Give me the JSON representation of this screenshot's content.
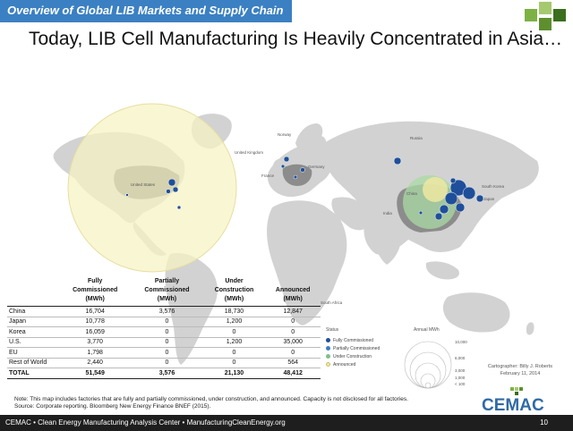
{
  "header": {
    "text": "Overview of Global LIB Markets and Supply Chain"
  },
  "title": "Today, LIB Cell Manufacturing Is Heavily Concentrated in Asia…",
  "map_labels": [
    {
      "key": "norway",
      "text": "Norway"
    },
    {
      "key": "uk",
      "text": "United Kingdom"
    },
    {
      "key": "germany",
      "text": "Germany"
    },
    {
      "key": "france",
      "text": "France"
    },
    {
      "key": "russia",
      "text": "Russia"
    },
    {
      "key": "us",
      "text": "United States"
    },
    {
      "key": "south_korea",
      "text": "South Korea"
    },
    {
      "key": "japan",
      "text": "Japan"
    },
    {
      "key": "china",
      "text": "China"
    },
    {
      "key": "india",
      "text": "India"
    },
    {
      "key": "south_africa",
      "text": "South Africa"
    }
  ],
  "table": {
    "columns": [
      {
        "l1": "Fully",
        "l2": "Commissioned",
        "l3": "(MWh)"
      },
      {
        "l1": "Partially",
        "l2": "Commissioned",
        "l3": "(MWh)"
      },
      {
        "l1": "Under",
        "l2": "Construction",
        "l3": "(MWh)"
      },
      {
        "l1": "",
        "l2": "Announced",
        "l3": "(MWh)"
      }
    ],
    "rows": [
      {
        "region": "China",
        "values": [
          "16,704",
          "3,576",
          "18,730",
          "12,847"
        ]
      },
      {
        "region": "Japan",
        "values": [
          "10,778",
          "0",
          "1,200",
          "0"
        ]
      },
      {
        "region": "Korea",
        "values": [
          "16,059",
          "0",
          "0",
          "0"
        ]
      },
      {
        "region": "U.S.",
        "values": [
          "3,770",
          "0",
          "1,200",
          "35,000"
        ]
      },
      {
        "region": "EU",
        "values": [
          "1,798",
          "0",
          "0",
          "0"
        ]
      },
      {
        "region": "Rest of World",
        "values": [
          "2,440",
          "0",
          "0",
          "564"
        ]
      }
    ],
    "total": {
      "region": "TOTAL",
      "values": [
        "51,549",
        "3,576",
        "21,130",
        "48,412"
      ]
    }
  },
  "legend": {
    "status_title": "Status",
    "items": [
      {
        "label": "Fully Commissioned",
        "color": "#1f4f9a"
      },
      {
        "label": "Partially Commissioned",
        "color": "#3b7fc4"
      },
      {
        "label": "Under Construction",
        "color": "#7fbf8f"
      },
      {
        "label": "Announced",
        "color": "#f3e9a3"
      }
    ],
    "size_title": "Annual MWh",
    "sizes": [
      "10,000",
      "6,000",
      "3,000",
      "1,000",
      "< 100"
    ]
  },
  "credit": {
    "line1": "Cartographer: Billy J. Roberts",
    "line2": "February 11, 2014"
  },
  "note": {
    "line1": "Note: This map includes factories that are fully and partially commissioned, under construction, and announced. Capacity is not disclosed for all factories.",
    "line2": "Source: Corporate reporting. Bloomberg New Energy Finance BNEF (2015)."
  },
  "logo": {
    "text": "CEMAC"
  },
  "footer": {
    "text": "CEMAC • Clean Energy Manufacturing Analysis Center • ManufacturingCleanEnergy.org",
    "page": "10"
  },
  "colors": {
    "header_blue": "#3b80c2",
    "ocean": "#ffffff",
    "land": "#d2d2d2",
    "dark_land": "#7d7d7d",
    "us_circle": "#f7f3c2",
    "china_circle": "#a9d9a3",
    "factory_fully": "#1f4f9a",
    "logo_green": "#7db144",
    "logo_blue": "#2f6aa6"
  }
}
